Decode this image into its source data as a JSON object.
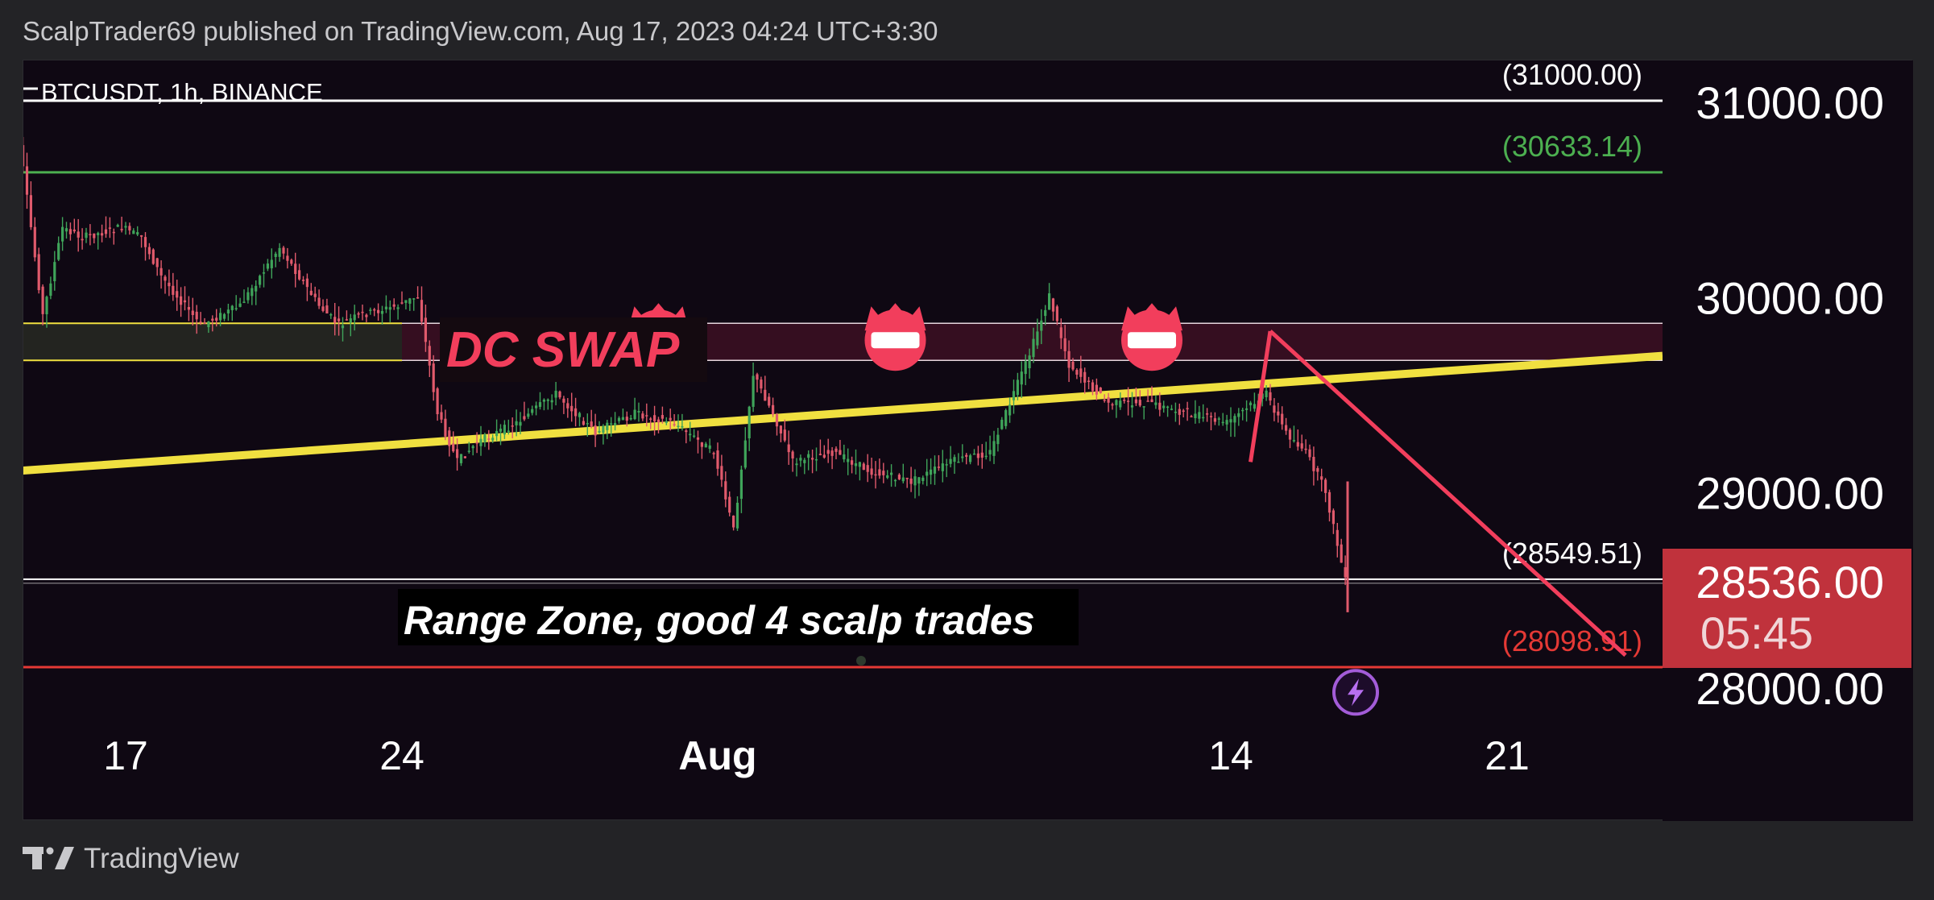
{
  "header": {
    "caption": "ScalpTrader69 published on TradingView.com, Aug 17, 2023 04:24 UTC+3:30"
  },
  "footer": {
    "brand": "TradingView"
  },
  "colors": {
    "background": "#0f0813",
    "yellow": "#f0e040",
    "green": "#4caf50",
    "red": "#e53935",
    "pink": "#f23e5c",
    "price_badge": "#c0323c"
  },
  "chart_data": {
    "type": "candlestick",
    "symbol": "BTCUSDT, 1h, BINANCE",
    "y_axis": {
      "ticks": [
        "31000.00",
        "30000.00",
        "29000.00",
        "28000.00"
      ],
      "tick_values": [
        31000,
        30000,
        29000,
        28000
      ],
      "range": [
        27500,
        31200
      ]
    },
    "x_axis": {
      "ticks": [
        {
          "label": "17",
          "date": "2023-07-17"
        },
        {
          "label": "24",
          "date": "2023-07-24"
        },
        {
          "label": "Aug",
          "date": "2023-08-01",
          "bold": true
        },
        {
          "label": "14",
          "date": "2023-08-14"
        },
        {
          "label": "21",
          "date": "2023-08-21"
        }
      ],
      "range": [
        "2023-07-14",
        "2023-08-24"
      ]
    },
    "current_price": {
      "value": "28536.00",
      "countdown": "05:45"
    },
    "horizontal_levels": [
      {
        "value": 31000.0,
        "label": "(31000.00)",
        "color": "#ffffff"
      },
      {
        "value": 30633.14,
        "label": "(30633.14)",
        "color": "#4caf50"
      },
      {
        "value": 28549.51,
        "label": "(28549.51)",
        "color": "#ffffff"
      },
      {
        "value": 28098.91,
        "label": "(28098.91)",
        "color": "#e53935"
      }
    ],
    "zones": [
      {
        "name": "dc-swap-zone",
        "top": 29860,
        "bottom": 29670
      }
    ],
    "annotations": {
      "dc_swap": "DC SWAP",
      "range_zone": "Range Zone, good 4 scalp trades"
    },
    "price_path": [
      [
        "2023-07-14",
        31300
      ],
      [
        "2023-07-14T12",
        30650
      ],
      [
        "2023-07-15",
        29900
      ],
      [
        "2023-07-15T12",
        30350
      ],
      [
        "2023-07-16",
        30300
      ],
      [
        "2023-07-17",
        30350
      ],
      [
        "2023-07-17T12",
        30300
      ],
      [
        "2023-07-18",
        30100
      ],
      [
        "2023-07-19",
        29850
      ],
      [
        "2023-07-20",
        29950
      ],
      [
        "2023-07-21",
        30250
      ],
      [
        "2023-07-22",
        29950
      ],
      [
        "2023-07-22T12",
        29850
      ],
      [
        "2023-07-23",
        29900
      ],
      [
        "2023-07-24",
        29950
      ],
      [
        "2023-07-24T12",
        30000
      ],
      [
        "2023-07-25",
        29400
      ],
      [
        "2023-07-25T12",
        29150
      ],
      [
        "2023-07-26",
        29250
      ],
      [
        "2023-07-27",
        29350
      ],
      [
        "2023-07-28",
        29500
      ],
      [
        "2023-07-29",
        29300
      ],
      [
        "2023-07-30",
        29400
      ],
      [
        "2023-07-31",
        29350
      ],
      [
        "2023-08-01",
        29200
      ],
      [
        "2023-08-01T12",
        28800
      ],
      [
        "2023-08-02",
        29600
      ],
      [
        "2023-08-02T12",
        29400
      ],
      [
        "2023-08-03",
        29150
      ],
      [
        "2023-08-04",
        29200
      ],
      [
        "2023-08-05",
        29100
      ],
      [
        "2023-08-06",
        29050
      ],
      [
        "2023-08-07",
        29150
      ],
      [
        "2023-08-08",
        29200
      ],
      [
        "2023-08-09",
        29700
      ],
      [
        "2023-08-09T12",
        30000
      ],
      [
        "2023-08-10",
        29650
      ],
      [
        "2023-08-11",
        29450
      ],
      [
        "2023-08-12",
        29450
      ],
      [
        "2023-08-13",
        29400
      ],
      [
        "2023-08-14",
        29350
      ],
      [
        "2023-08-15",
        29500
      ],
      [
        "2023-08-15T12",
        29300
      ],
      [
        "2023-08-16",
        29200
      ],
      [
        "2023-08-16T12",
        29000
      ],
      [
        "2023-08-17",
        28540
      ]
    ],
    "trendlines": [
      {
        "name": "yellow-trendline",
        "from": [
          "2023-07-14",
          29100
        ],
        "to": [
          "2023-08-24",
          29680
        ],
        "color": "#f0e040"
      },
      {
        "name": "projection-up",
        "from": [
          "2023-08-14T12",
          29150
        ],
        "to": [
          "2023-08-15",
          29820
        ],
        "color": "#f23e5c"
      },
      {
        "name": "projection-down",
        "from": [
          "2023-08-15",
          29820
        ],
        "to": [
          "2023-08-24",
          28160
        ],
        "color": "#f23e5c"
      }
    ],
    "markers": [
      {
        "name": "crown-marker-1",
        "date": "2023-07-30T12",
        "value": 29790
      },
      {
        "name": "crown-marker-2",
        "date": "2023-08-05T12",
        "value": 29790
      },
      {
        "name": "crown-marker-3",
        "date": "2023-08-12",
        "value": 29790
      }
    ],
    "lightning_marker": {
      "date": "2023-08-17",
      "value": 27970
    }
  }
}
